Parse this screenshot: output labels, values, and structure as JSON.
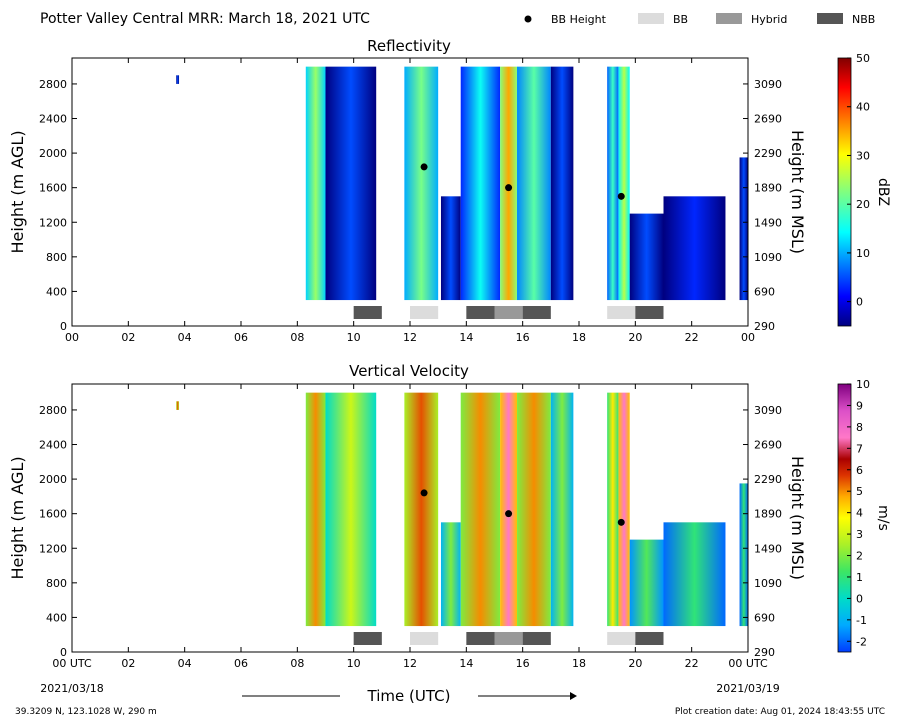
{
  "header": {
    "title": "Potter Valley Central MRR:  March 18, 2021 UTC",
    "legend": [
      {
        "label": "BB Height",
        "type": "dot",
        "color": "#000000"
      },
      {
        "label": "BB",
        "type": "box",
        "color": "#dcdcdc"
      },
      {
        "label": "Hybrid",
        "type": "box",
        "color": "#999999"
      },
      {
        "label": "NBB",
        "type": "box",
        "color": "#555555"
      }
    ]
  },
  "footer": {
    "location": "39.3209 N, 123.1028 W, 290 m",
    "creation": "Plot creation date: Aug 01, 2024 18:43:55 UTC",
    "xlabel": "Time (UTC)",
    "start_label": "00 UTC",
    "start_date": "2021/03/18",
    "end_label": "00 UTC",
    "end_date": "2021/03/19"
  },
  "colors": {
    "bb": "#dcdcdc",
    "hybrid": "#999999",
    "nbb": "#555555"
  },
  "chart_data": [
    {
      "type": "heatmap",
      "title": "Reflectivity",
      "ylabel": "Height (m AGL)",
      "y2label": "Height (m MSL)",
      "xlim": [
        0,
        24
      ],
      "ylim": [
        0,
        3100
      ],
      "x_ticks": [
        "00",
        "02",
        "04",
        "06",
        "08",
        "10",
        "12",
        "14",
        "16",
        "18",
        "20",
        "22",
        "00"
      ],
      "y_ticks": [
        0,
        400,
        800,
        1200,
        1600,
        2000,
        2400,
        2800
      ],
      "y2_ticks": [
        290,
        690,
        1090,
        1490,
        1890,
        2290,
        2690,
        3090
      ],
      "colorbar": {
        "label": "dBZ",
        "min": -5,
        "max": 50,
        "ticks": [
          0,
          10,
          20,
          30,
          40,
          50
        ],
        "colormap": "jet"
      },
      "bb_height": [
        {
          "time": 12.5,
          "height": 1840
        },
        {
          "time": 15.5,
          "height": 1600
        },
        {
          "time": 19.5,
          "height": 1500
        }
      ],
      "bb_type": [
        {
          "start": 10,
          "end": 11,
          "type": "NBB"
        },
        {
          "start": 12,
          "end": 13,
          "type": "BB"
        },
        {
          "start": 14,
          "end": 15,
          "type": "NBB"
        },
        {
          "start": 15,
          "end": 16,
          "type": "Hybrid"
        },
        {
          "start": 16,
          "end": 17,
          "type": "NBB"
        },
        {
          "start": 19,
          "end": 20,
          "type": "BB"
        },
        {
          "start": 20,
          "end": 21,
          "type": "NBB"
        }
      ],
      "precip_bands": [
        {
          "start": 3.7,
          "end": 3.8,
          "top": 2900,
          "bottom": 2800,
          "core": 5
        },
        {
          "start": 8.3,
          "end": 9.0,
          "top": 3000,
          "bottom": 300,
          "core": 24
        },
        {
          "start": 9.0,
          "end": 10.8,
          "top": 3000,
          "bottom": 300,
          "core": 5
        },
        {
          "start": 11.8,
          "end": 13.0,
          "top": 3000,
          "bottom": 300,
          "core": 22
        },
        {
          "start": 13.1,
          "end": 13.8,
          "top": 1500,
          "bottom": 300,
          "core": 5
        },
        {
          "start": 13.8,
          "end": 15.2,
          "top": 3000,
          "bottom": 300,
          "core": 15
        },
        {
          "start": 15.2,
          "end": 15.8,
          "top": 3000,
          "bottom": 300,
          "core": 35
        },
        {
          "start": 15.8,
          "end": 17.0,
          "top": 3000,
          "bottom": 300,
          "core": 20
        },
        {
          "start": 17.0,
          "end": 17.8,
          "top": 3000,
          "bottom": 300,
          "core": 5
        },
        {
          "start": 19.0,
          "end": 19.4,
          "top": 3000,
          "bottom": 300,
          "core": 18
        },
        {
          "start": 19.4,
          "end": 19.8,
          "top": 3000,
          "bottom": 300,
          "core": 26
        },
        {
          "start": 19.8,
          "end": 21.0,
          "top": 1300,
          "bottom": 300,
          "core": 5
        },
        {
          "start": 21.0,
          "end": 23.2,
          "top": 1500,
          "bottom": 300,
          "core": 3
        },
        {
          "start": 23.7,
          "end": 24.0,
          "top": 1950,
          "bottom": 300,
          "core": 5
        }
      ]
    },
    {
      "type": "heatmap",
      "title": "Vertical Velocity",
      "ylabel": "Height (m AGL)",
      "y2label": "Height (m MSL)",
      "xlim": [
        0,
        24
      ],
      "ylim": [
        0,
        3100
      ],
      "x_ticks": [
        "00 UTC",
        "02",
        "04",
        "06",
        "08",
        "10",
        "12",
        "14",
        "16",
        "18",
        "20",
        "22",
        "00 UTC"
      ],
      "y_ticks": [
        0,
        400,
        800,
        1200,
        1600,
        2000,
        2400,
        2800
      ],
      "y2_ticks": [
        290,
        690,
        1090,
        1490,
        1890,
        2290,
        2690,
        3090
      ],
      "colorbar": {
        "label": "m/s",
        "min": -2.5,
        "max": 10,
        "ticks": [
          -2,
          -1,
          0,
          1,
          2,
          3,
          4,
          5,
          6,
          7,
          8,
          9,
          10
        ],
        "colormap": "custom"
      },
      "bb_height": [
        {
          "time": 12.5,
          "height": 1840
        },
        {
          "time": 15.5,
          "height": 1600
        },
        {
          "time": 19.5,
          "height": 1500
        }
      ],
      "bb_type": [
        {
          "start": 10,
          "end": 11,
          "type": "NBB"
        },
        {
          "start": 12,
          "end": 13,
          "type": "BB"
        },
        {
          "start": 14,
          "end": 15,
          "type": "NBB"
        },
        {
          "start": 15,
          "end": 16,
          "type": "Hybrid"
        },
        {
          "start": 16,
          "end": 17,
          "type": "NBB"
        },
        {
          "start": 19,
          "end": 20,
          "type": "BB"
        },
        {
          "start": 20,
          "end": 21,
          "type": "NBB"
        }
      ],
      "precip_bands": [
        {
          "start": 3.7,
          "end": 3.8,
          "top": 2900,
          "bottom": 2800,
          "core": 5.5
        },
        {
          "start": 8.3,
          "end": 9.0,
          "top": 3000,
          "bottom": 300,
          "core": 5
        },
        {
          "start": 9.0,
          "end": 10.8,
          "top": 3000,
          "bottom": 300,
          "core": 3
        },
        {
          "start": 11.8,
          "end": 13.0,
          "top": 3000,
          "bottom": 300,
          "core": 5.5
        },
        {
          "start": 13.1,
          "end": 13.8,
          "top": 1500,
          "bottom": 300,
          "core": 2
        },
        {
          "start": 13.8,
          "end": 15.2,
          "top": 3000,
          "bottom": 300,
          "core": 5
        },
        {
          "start": 15.2,
          "end": 15.8,
          "top": 3000,
          "bottom": 300,
          "core": 7.5
        },
        {
          "start": 15.8,
          "end": 17.0,
          "top": 3000,
          "bottom": 300,
          "core": 5
        },
        {
          "start": 17.0,
          "end": 17.8,
          "top": 3000,
          "bottom": 300,
          "core": 2
        },
        {
          "start": 19.0,
          "end": 19.4,
          "top": 3000,
          "bottom": 300,
          "core": 4
        },
        {
          "start": 19.4,
          "end": 19.8,
          "top": 3000,
          "bottom": 300,
          "core": 7.5
        },
        {
          "start": 19.8,
          "end": 21.0,
          "top": 1300,
          "bottom": 300,
          "core": 1.5
        },
        {
          "start": 21.0,
          "end": 23.2,
          "top": 1500,
          "bottom": 300,
          "core": 1
        },
        {
          "start": 23.7,
          "end": 24.0,
          "top": 1950,
          "bottom": 300,
          "core": 1
        }
      ]
    }
  ]
}
